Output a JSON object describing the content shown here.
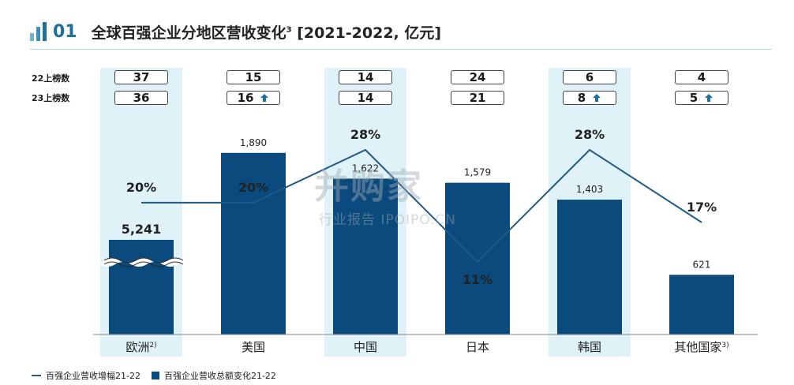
{
  "header": {
    "number": "01",
    "title": "全球百强企业分地区营收变化",
    "title_sup": "3",
    "title_suffix": " [2021-2022, 亿元]"
  },
  "rank_rows": {
    "row1_label": "22上榜数",
    "row2_label": "23上榜数"
  },
  "colors": {
    "accent": "#1f6e9b",
    "bar": "#0b4a7c",
    "line": "#1f5a88",
    "band": "#dff2f7"
  },
  "chart_data": {
    "type": "bar",
    "categories": [
      "欧洲",
      "美国",
      "中国",
      "日本",
      "韩国",
      "其他国家"
    ],
    "category_sup": [
      "2)",
      "",
      "",
      "",
      "",
      "3)"
    ],
    "series": [
      {
        "name": "百强企业营收总额变化21-22",
        "type": "bar",
        "values": [
          5241,
          1890,
          1622,
          1579,
          1403,
          621
        ],
        "labels": [
          "5,241",
          "1,890",
          "1,622",
          "1,579",
          "1,403",
          "621"
        ],
        "broken_axis": [
          true,
          false,
          false,
          false,
          false,
          false
        ]
      },
      {
        "name": "百强企业营收增幅21-22",
        "type": "line",
        "values": [
          20,
          20,
          28,
          11,
          28,
          17
        ],
        "labels": [
          "20%",
          "20%",
          "28%",
          "11%",
          "28%",
          "17%"
        ]
      }
    ],
    "rank_2022": [
      "37",
      "15",
      "14",
      "24",
      "6",
      "4"
    ],
    "rank_2023": [
      "36",
      "16",
      "14",
      "21",
      "8",
      "5"
    ],
    "rank_2023_up": [
      false,
      true,
      false,
      false,
      true,
      true
    ],
    "highlighted": [
      true,
      false,
      true,
      false,
      true,
      false
    ],
    "bar_axis_display_max": 2200,
    "line_ylim": [
      0,
      40
    ]
  },
  "watermark": {
    "line1": "并购家",
    "line2": "行业报告 IPOIPO.CN"
  }
}
